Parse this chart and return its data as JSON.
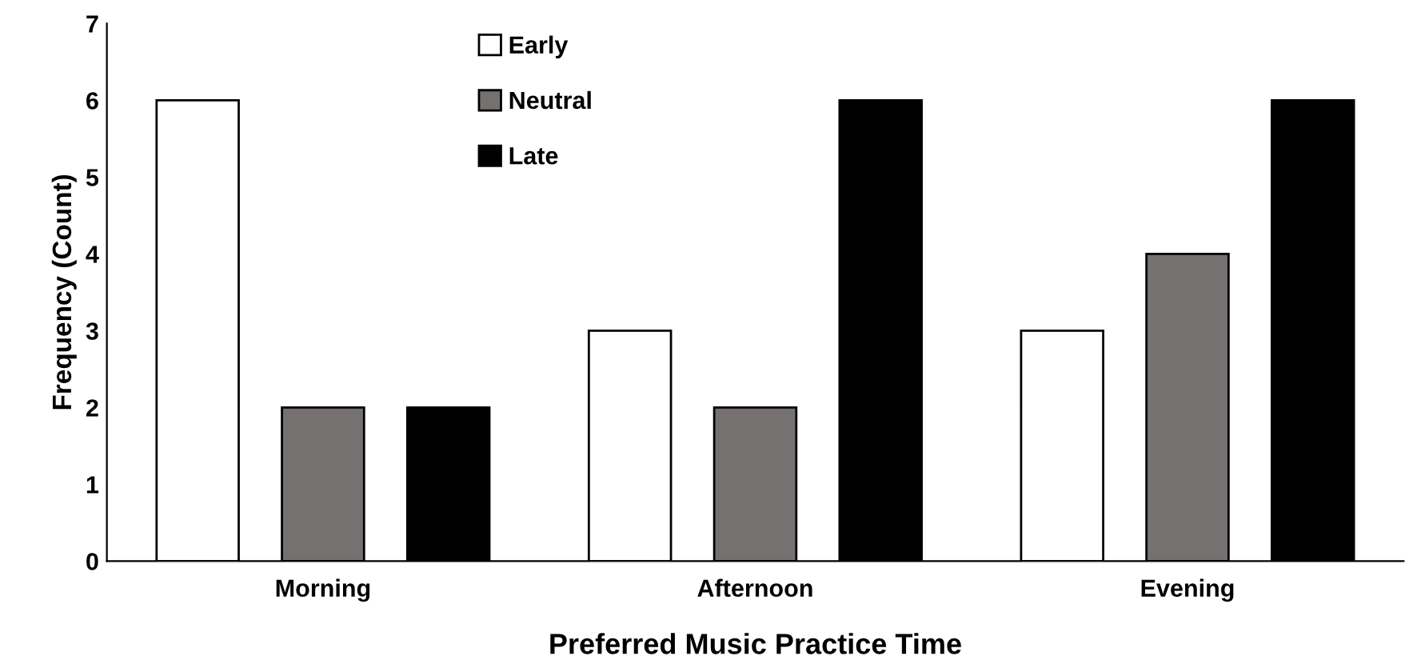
{
  "chart_data": {
    "type": "bar",
    "xlabel": "Preferred Music Practice Time",
    "ylabel": "Frequency (Count)",
    "categories": [
      "Morning",
      "Afternoon",
      "Evening"
    ],
    "series": [
      {
        "name": "Early",
        "color": "#ffffff",
        "values": [
          6,
          3,
          3
        ]
      },
      {
        "name": "Neutral",
        "color": "#767171",
        "values": [
          2,
          2,
          4
        ]
      },
      {
        "name": "Late",
        "color": "#000000",
        "values": [
          2,
          6,
          6
        ]
      }
    ],
    "ylim": [
      0,
      7
    ],
    "yticks": [
      0,
      1,
      2,
      3,
      4,
      5,
      6,
      7
    ],
    "grid": false,
    "legend": "top left"
  }
}
